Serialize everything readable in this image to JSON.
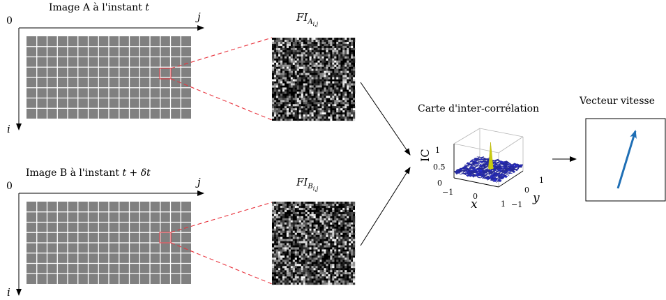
{
  "panel_a": {
    "title": "Image A à l'instant ",
    "title_var": "t",
    "origin": "0",
    "axis_j": "j",
    "axis_i": "i",
    "fi_base": "FI",
    "fi_sub": "A",
    "fi_idx": "i,j"
  },
  "panel_b": {
    "title": "Image B à l'instant ",
    "title_var": "t + δt",
    "origin": "0",
    "axis_j": "j",
    "axis_i": "i",
    "fi_base": "FI",
    "fi_sub": "B",
    "fi_idx": "i,j"
  },
  "correlation": {
    "title": "Carte d'inter-corrélation",
    "z_label": "IC",
    "x_label": "x",
    "y_label": "y",
    "z_ticks": [
      "1",
      "0.5",
      "0"
    ],
    "x_ticks": [
      "−1",
      "0",
      "1"
    ],
    "y_ticks": [
      "−1",
      "0",
      "1"
    ]
  },
  "velocity": {
    "title": "Vecteur vitesse"
  },
  "colors": {
    "grid_fill": "#808080",
    "grid_line": "#ffffff",
    "highlight": "#e8323c",
    "surface": "#2b30b8",
    "peak": "#e3e620",
    "vector": "#1f6fb5"
  }
}
